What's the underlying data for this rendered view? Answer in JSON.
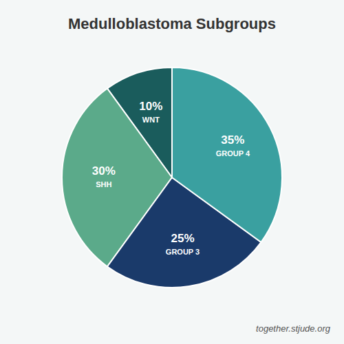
{
  "chart_data": {
    "type": "pie",
    "title": "Medulloblastoma Subgroups",
    "annotation": "together.stjude.org",
    "categories": [
      "WNT",
      "SHH",
      "GROUP 3",
      "GROUP 4"
    ],
    "values": [
      10,
      30,
      25,
      35
    ],
    "value_labels": [
      "10%",
      "30%",
      "25%",
      "35%"
    ],
    "colors": [
      "#1A5C5C",
      "#5BAA8A",
      "#1A3A6A",
      "#3AA0A0"
    ],
    "data_labels": true
  }
}
